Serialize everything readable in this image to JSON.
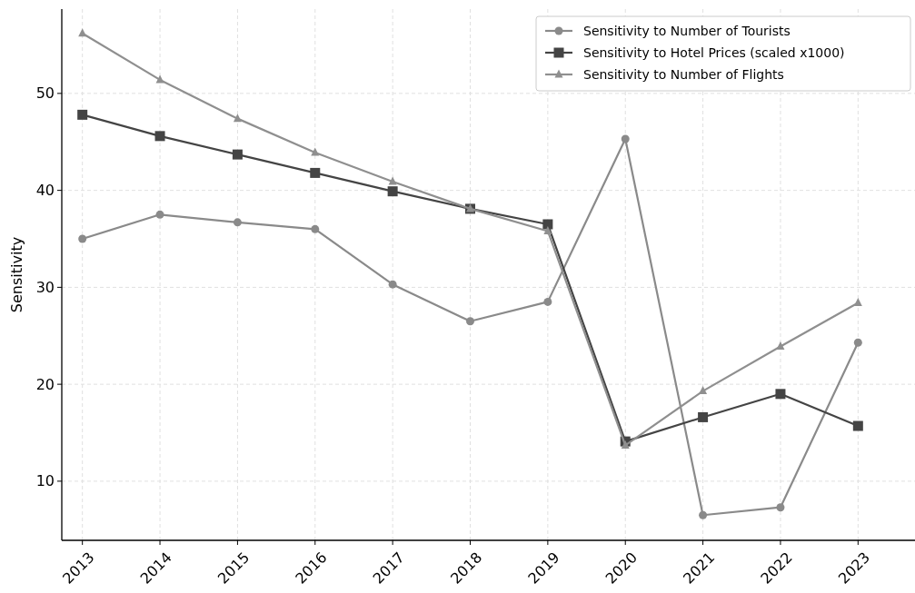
{
  "chart_data": {
    "type": "line",
    "ylabel": "Sensitivity",
    "categories": [
      "2013",
      "2014",
      "2015",
      "2016",
      "2017",
      "2018",
      "2019",
      "2020",
      "2021",
      "2022",
      "2023"
    ],
    "series": [
      {
        "name": "Sensitivity to Number of Tourists",
        "color": "#8a8a8a",
        "marker": "circle",
        "values": [
          35.0,
          37.5,
          36.7,
          36.0,
          30.3,
          26.5,
          28.5,
          45.3,
          6.5,
          7.3,
          24.3
        ]
      },
      {
        "name": "Sensitivity to Hotel Prices (scaled x1000)",
        "color": "#444444",
        "marker": "square",
        "values": [
          47.8,
          45.6,
          43.7,
          41.8,
          39.9,
          38.1,
          36.5,
          14.1,
          16.6,
          19.0,
          15.7
        ]
      },
      {
        "name": "Sensitivity to Number of Flights",
        "color": "#8f8f8f",
        "marker": "triangle",
        "values": [
          56.2,
          51.4,
          47.4,
          43.9,
          40.9,
          38.1,
          35.8,
          13.7,
          19.3,
          23.9,
          28.4
        ]
      }
    ],
    "ylim": [
      3.9,
      58.7
    ],
    "yticks": [
      10,
      20,
      30,
      40,
      50
    ],
    "grid": true,
    "legend": "top right",
    "line_style": "solid"
  }
}
